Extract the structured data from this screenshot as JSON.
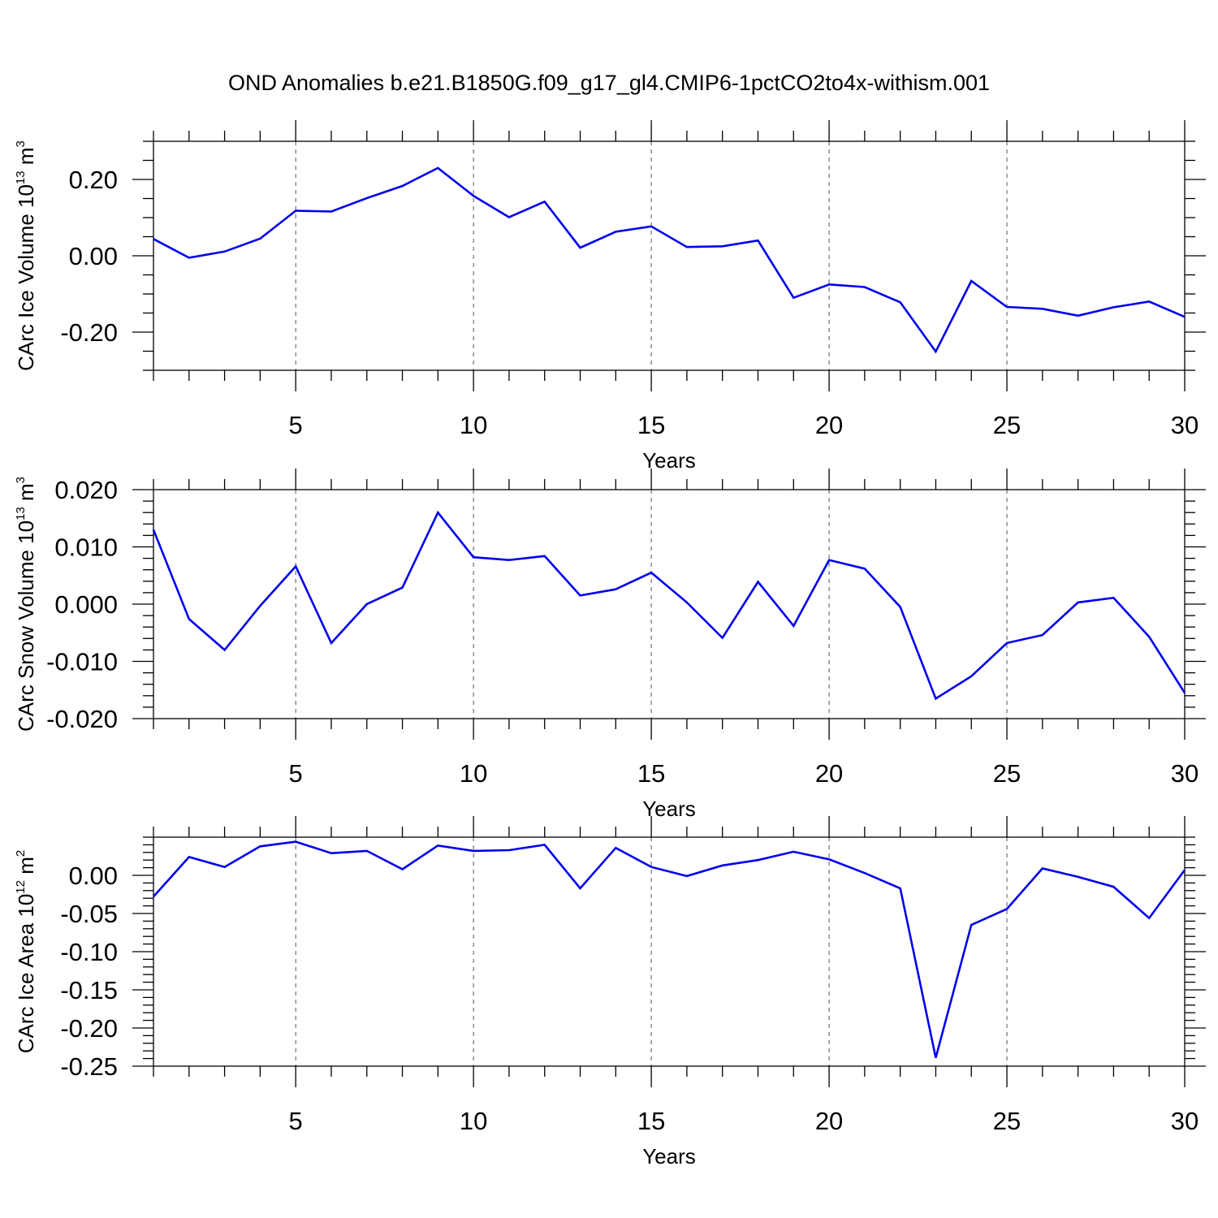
{
  "title": "OND Anomalies b.e21.B1850G.f09_g17_gl4.CMIP6-1pctCO2to4x-withism.001",
  "colors": {
    "line": "#0000ee",
    "axis": "#000000",
    "grid": "#555555"
  },
  "chart_data": [
    {
      "type": "line",
      "ylabel_main": "CArc Ice Volume 10",
      "ylabel_exp": "13",
      "ylabel_unit": "m",
      "ylabel_unit_exp": "3",
      "xlabel": "Years",
      "xlim": [
        1,
        30
      ],
      "ylim": [
        -0.3,
        0.3
      ],
      "xticks": [
        5,
        10,
        15,
        20,
        25,
        30
      ],
      "yticks": [
        -0.2,
        0.0,
        0.2
      ],
      "ytick_labels": [
        "-0.20",
        "0.00",
        "0.20"
      ],
      "yminor_step": 0.05,
      "x": [
        1,
        2,
        3,
        4,
        5,
        6,
        7,
        8,
        9,
        10,
        11,
        12,
        13,
        14,
        15,
        16,
        17,
        18,
        19,
        20,
        21,
        22,
        23,
        24,
        25,
        26,
        27,
        28,
        29,
        30
      ],
      "series": [
        {
          "values": [
            0.044,
            -0.005,
            0.011,
            0.045,
            0.118,
            0.116,
            0.151,
            0.183,
            0.23,
            0.157,
            0.101,
            0.142,
            0.021,
            0.063,
            0.077,
            0.023,
            0.025,
            0.04,
            -0.11,
            -0.075,
            -0.082,
            -0.122,
            -0.251,
            -0.066,
            -0.134,
            -0.139,
            -0.157,
            -0.135,
            -0.12,
            -0.16
          ]
        }
      ]
    },
    {
      "type": "line",
      "ylabel_main": "CArc Snow Volume 10",
      "ylabel_exp": "13",
      "ylabel_unit": "m",
      "ylabel_unit_exp": "3",
      "xlabel": "Years",
      "xlim": [
        1,
        30
      ],
      "ylim": [
        -0.02,
        0.02
      ],
      "xticks": [
        5,
        10,
        15,
        20,
        25,
        30
      ],
      "yticks": [
        -0.02,
        -0.01,
        0.0,
        0.01,
        0.02
      ],
      "ytick_labels": [
        "-0.020",
        "-0.010",
        "0.000",
        "0.010",
        "0.020"
      ],
      "yminor_step": 0.002,
      "x": [
        1,
        2,
        3,
        4,
        5,
        6,
        7,
        8,
        9,
        10,
        11,
        12,
        13,
        14,
        15,
        16,
        17,
        18,
        19,
        20,
        21,
        22,
        23,
        24,
        25,
        26,
        27,
        28,
        29,
        30
      ],
      "series": [
        {
          "values": [
            0.013,
            -0.0026,
            -0.008,
            -0.0003,
            0.0066,
            -0.0068,
            0.0,
            0.0029,
            0.016,
            0.0082,
            0.0077,
            0.0084,
            0.0015,
            0.0026,
            0.0055,
            0.0003,
            -0.0059,
            0.0039,
            -0.0038,
            0.0077,
            0.0062,
            -0.0005,
            -0.0165,
            -0.0126,
            -0.0068,
            -0.0054,
            0.0003,
            0.0011,
            -0.0057,
            -0.0155
          ]
        }
      ]
    },
    {
      "type": "line",
      "ylabel_main": "CArc Ice Area 10",
      "ylabel_exp": "12",
      "ylabel_unit": "m",
      "ylabel_unit_exp": "2",
      "xlabel": "Years",
      "xlim": [
        1,
        30
      ],
      "ylim": [
        -0.25,
        0.05
      ],
      "xticks": [
        5,
        10,
        15,
        20,
        25,
        30
      ],
      "yticks": [
        -0.25,
        -0.2,
        -0.15,
        -0.1,
        -0.05,
        0.0
      ],
      "ytick_labels": [
        "-0.25",
        "-0.20",
        "-0.15",
        "-0.10",
        "-0.05",
        "0.00"
      ],
      "yminor_step": 0.01,
      "x": [
        1,
        2,
        3,
        4,
        5,
        6,
        7,
        8,
        9,
        10,
        11,
        12,
        13,
        14,
        15,
        16,
        17,
        18,
        19,
        20,
        21,
        22,
        23,
        24,
        25,
        26,
        27,
        28,
        29,
        30
      ],
      "series": [
        {
          "values": [
            -0.028,
            0.024,
            0.011,
            0.038,
            0.044,
            0.029,
            0.032,
            0.008,
            0.039,
            0.032,
            0.033,
            0.04,
            -0.017,
            0.036,
            0.011,
            -0.001,
            0.013,
            0.02,
            0.031,
            0.021,
            0.003,
            -0.017,
            -0.239,
            -0.065,
            -0.044,
            0.009,
            -0.002,
            -0.015,
            -0.056,
            0.007
          ]
        }
      ]
    }
  ]
}
